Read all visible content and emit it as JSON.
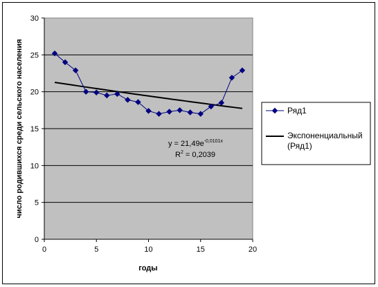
{
  "chart_data": {
    "type": "line",
    "xlabel": "годы",
    "ylabel": "число родившихся среди сельского населения",
    "xlim": [
      0,
      20
    ],
    "ylim": [
      0,
      30
    ],
    "xticks": [
      0,
      5,
      10,
      15,
      20
    ],
    "yticks": [
      0,
      5,
      10,
      15,
      20,
      25,
      30
    ],
    "grid": "horizontal",
    "legend_position": "right",
    "plot_background": "#c0c0c0",
    "series": [
      {
        "name": "Ряд1",
        "color": "#000080",
        "marker": "diamond",
        "x": [
          1,
          2,
          3,
          4,
          5,
          6,
          7,
          8,
          9,
          10,
          11,
          12,
          13,
          14,
          15,
          16,
          17,
          18,
          19
        ],
        "y": [
          25.2,
          24.0,
          22.9,
          20.0,
          19.9,
          19.5,
          19.7,
          18.9,
          18.6,
          17.4,
          17.0,
          17.3,
          17.5,
          17.2,
          17.0,
          18.0,
          18.5,
          21.9,
          22.9
        ]
      }
    ],
    "trendline": {
      "name_line1": "Экспоненциальный",
      "name_line2": "(Ряд1)",
      "type": "exponential",
      "a": 21.49,
      "b": -0.0101,
      "x_range": [
        1,
        19
      ],
      "color": "#000000",
      "equation_prefix": "y = 21,49e",
      "equation_exponent": "-0,0101x",
      "r2_prefix": "R",
      "r2_exponent": "2",
      "r2_value": " = 0,2039"
    }
  }
}
